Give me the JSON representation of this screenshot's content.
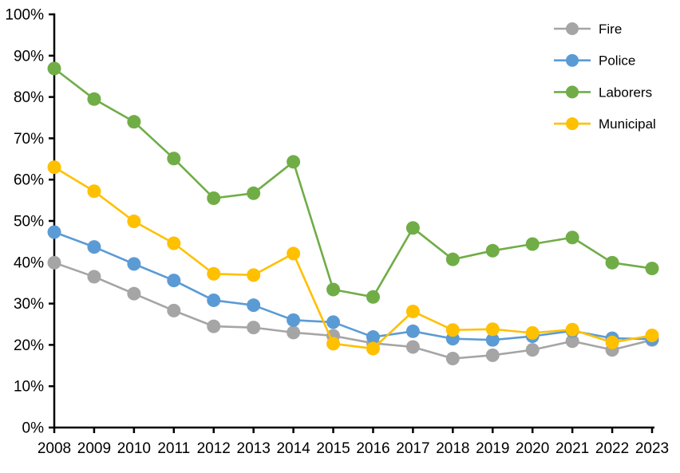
{
  "chart_data": {
    "type": "line",
    "title": "",
    "xlabel": "",
    "ylabel": "",
    "grid": false,
    "legend_position": "top-right",
    "background_color": "#FFFFFF",
    "axis_color": "#000000",
    "ylim": [
      0,
      100
    ],
    "y_ticks": [
      0,
      10,
      20,
      30,
      40,
      50,
      60,
      70,
      80,
      90,
      100
    ],
    "y_tick_labels": [
      "0%",
      "10%",
      "20%",
      "30%",
      "40%",
      "50%",
      "60%",
      "70%",
      "80%",
      "90%",
      "100%"
    ],
    "x_tick_labels": [
      "2008",
      "2009",
      "2010",
      "2011",
      "2012",
      "2013",
      "2014",
      "2015",
      "2016",
      "2017",
      "2018",
      "2019",
      "2020",
      "2021",
      "2022",
      "2023"
    ],
    "series": [
      {
        "name": "Fire",
        "color": "#A5A5A5",
        "values": [
          39.9,
          36.5,
          32.4,
          28.3,
          24.5,
          24.2,
          23.0,
          22.2,
          20.4,
          19.5,
          16.7,
          17.5,
          18.8,
          20.9,
          18.8,
          21.2
        ]
      },
      {
        "name": "Police",
        "color": "#5B9BD5",
        "values": [
          47.3,
          43.7,
          39.6,
          35.6,
          30.8,
          29.6,
          26.0,
          25.5,
          21.9,
          23.3,
          21.5,
          21.2,
          22.1,
          23.4,
          21.6,
          21.4
        ]
      },
      {
        "name": "Laborers",
        "color": "#70AD47",
        "values": [
          86.9,
          79.5,
          74.0,
          65.1,
          55.5,
          56.7,
          64.3,
          33.4,
          31.6,
          48.3,
          40.7,
          42.8,
          44.4,
          46.0,
          39.9,
          38.5
        ]
      },
      {
        "name": "Municipal",
        "color": "#FFC000",
        "values": [
          63.0,
          57.2,
          49.9,
          44.6,
          37.2,
          36.9,
          42.1,
          20.3,
          19.1,
          28.1,
          23.6,
          23.8,
          22.9,
          23.7,
          20.6,
          22.3
        ]
      }
    ]
  }
}
